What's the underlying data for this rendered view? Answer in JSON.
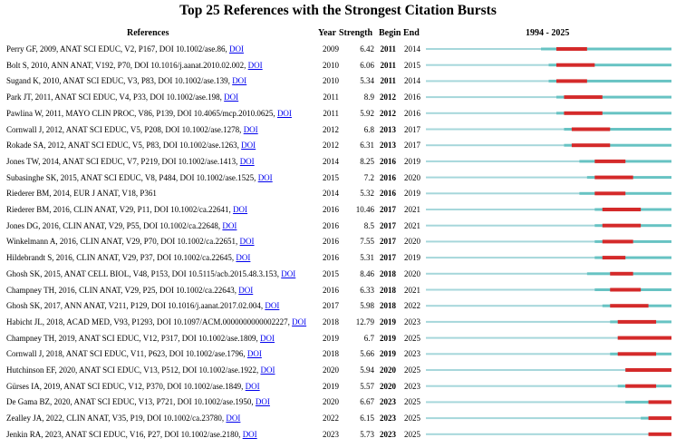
{
  "chart_data": {
    "type": "table",
    "title": "Top 25 References with the Strongest Citation Bursts",
    "columns": [
      "References",
      "Year",
      "Strength",
      "Begin",
      "End",
      "1994 - 2025"
    ],
    "timeline": {
      "start": 1994,
      "end": 2025
    },
    "colors": {
      "base": "#a6d7db",
      "active": "#67c3c3",
      "burst": "#d42a2a",
      "link": "#0000ee"
    },
    "rows": [
      {
        "ref": "Perry GF, 2009, ANAT SCI EDUC, V2, P167, DOI 10.1002/ase.86,",
        "doi": "DOI",
        "year": "2009",
        "strength": "6.42",
        "begin": "2011",
        "end": "2014"
      },
      {
        "ref": "Bolt S, 2010, ANN ANAT, V192, P70, DOI 10.1016/j.aanat.2010.02.002,",
        "doi": "DOI",
        "year": "2010",
        "strength": "6.06",
        "begin": "2011",
        "end": "2015"
      },
      {
        "ref": "Sugand K, 2010, ANAT SCI EDUC, V3, P83, DOI 10.1002/ase.139,",
        "doi": "DOI",
        "year": "2010",
        "strength": "5.34",
        "begin": "2011",
        "end": "2014"
      },
      {
        "ref": "Park JT, 2011, ANAT SCI EDUC, V4, P33, DOI 10.1002/ase.198,",
        "doi": "DOI",
        "year": "2011",
        "strength": "8.9",
        "begin": "2012",
        "end": "2016"
      },
      {
        "ref": "Pawlina W, 2011, MAYO CLIN PROC, V86, P139, DOI 10.4065/mcp.2010.0625,",
        "doi": "DOI",
        "year": "2011",
        "strength": "5.92",
        "begin": "2012",
        "end": "2016"
      },
      {
        "ref": "Cornwall J, 2012, ANAT SCI EDUC, V5, P208, DOI 10.1002/ase.1278,",
        "doi": "DOI",
        "year": "2012",
        "strength": "6.8",
        "begin": "2013",
        "end": "2017"
      },
      {
        "ref": "Rokade SA, 2012, ANAT SCI EDUC, V5, P83, DOI 10.1002/ase.1263,",
        "doi": "DOI",
        "year": "2012",
        "strength": "6.31",
        "begin": "2013",
        "end": "2017"
      },
      {
        "ref": "Jones TW, 2014, ANAT SCI EDUC, V7, P219, DOI 10.1002/ase.1413,",
        "doi": "DOI",
        "year": "2014",
        "strength": "8.25",
        "begin": "2016",
        "end": "2019"
      },
      {
        "ref": "Subasinghe SK, 2015, ANAT SCI EDUC, V8, P484, DOI 10.1002/ase.1525,",
        "doi": "DOI",
        "year": "2015",
        "strength": "7.2",
        "begin": "2016",
        "end": "2020"
      },
      {
        "ref": "Riederer BM, 2014, EUR J ANAT, V18, P361",
        "doi": "",
        "year": "2014",
        "strength": "5.32",
        "begin": "2016",
        "end": "2019"
      },
      {
        "ref": "Riederer BM, 2016, CLIN ANAT, V29, P11, DOI 10.1002/ca.22641,",
        "doi": "DOI",
        "year": "2016",
        "strength": "10.46",
        "begin": "2017",
        "end": "2021"
      },
      {
        "ref": "Jones DG, 2016, CLIN ANAT, V29, P55, DOI 10.1002/ca.22648,",
        "doi": "DOI",
        "year": "2016",
        "strength": "8.5",
        "begin": "2017",
        "end": "2021"
      },
      {
        "ref": "Winkelmann A, 2016, CLIN ANAT, V29, P70, DOI 10.1002/ca.22651,",
        "doi": "DOI",
        "year": "2016",
        "strength": "7.55",
        "begin": "2017",
        "end": "2020"
      },
      {
        "ref": "Hildebrandt S, 2016, CLIN ANAT, V29, P37, DOI 10.1002/ca.22645,",
        "doi": "DOI",
        "year": "2016",
        "strength": "5.31",
        "begin": "2017",
        "end": "2019"
      },
      {
        "ref": "Ghosh SK, 2015, ANAT CELL BIOL, V48, P153, DOI 10.5115/acb.2015.48.3.153,",
        "doi": "DOI",
        "year": "2015",
        "strength": "8.46",
        "begin": "2018",
        "end": "2020"
      },
      {
        "ref": "Champney TH, 2016, CLIN ANAT, V29, P25, DOI 10.1002/ca.22643,",
        "doi": "DOI",
        "year": "2016",
        "strength": "6.33",
        "begin": "2018",
        "end": "2021"
      },
      {
        "ref": "Ghosh SK, 2017, ANN ANAT, V211, P129, DOI 10.1016/j.aanat.2017.02.004,",
        "doi": "DOI",
        "year": "2017",
        "strength": "5.98",
        "begin": "2018",
        "end": "2022"
      },
      {
        "ref": "Habicht JL, 2018, ACAD MED, V93, P1293, DOI 10.1097/ACM.0000000000002227,",
        "doi": "DOI",
        "year": "2018",
        "strength": "12.79",
        "begin": "2019",
        "end": "2023"
      },
      {
        "ref": "Champney TH, 2019, ANAT SCI EDUC, V12, P317, DOI 10.1002/ase.1809,",
        "doi": "DOI",
        "year": "2019",
        "strength": "6.7",
        "begin": "2019",
        "end": "2025"
      },
      {
        "ref": "Cornwall J, 2018, ANAT SCI EDUC, V11, P623, DOI 10.1002/ase.1796,",
        "doi": "DOI",
        "year": "2018",
        "strength": "5.66",
        "begin": "2019",
        "end": "2023"
      },
      {
        "ref": "Hutchinson EF, 2020, ANAT SCI EDUC, V13, P512, DOI 10.1002/ase.1922,",
        "doi": "DOI",
        "year": "2020",
        "strength": "5.94",
        "begin": "2020",
        "end": "2025"
      },
      {
        "ref": "Gürses IA, 2019, ANAT SCI EDUC, V12, P370, DOI 10.1002/ase.1849,",
        "doi": "DOI",
        "year": "2019",
        "strength": "5.57",
        "begin": "2020",
        "end": "2023"
      },
      {
        "ref": "De Gama BZ, 2020, ANAT SCI EDUC, V13, P721, DOI 10.1002/ase.1950,",
        "doi": "DOI",
        "year": "2020",
        "strength": "6.67",
        "begin": "2023",
        "end": "2025"
      },
      {
        "ref": "Zealley JA, 2022, CLIN ANAT, V35, P19, DOI 10.1002/ca.23780,",
        "doi": "DOI",
        "year": "2022",
        "strength": "6.15",
        "begin": "2023",
        "end": "2025"
      },
      {
        "ref": "Jenkin RA, 2023, ANAT SCI EDUC, V16, P27, DOI 10.1002/ase.2180,",
        "doi": "DOI",
        "year": "2023",
        "strength": "5.73",
        "begin": "2023",
        "end": "2025"
      }
    ]
  }
}
